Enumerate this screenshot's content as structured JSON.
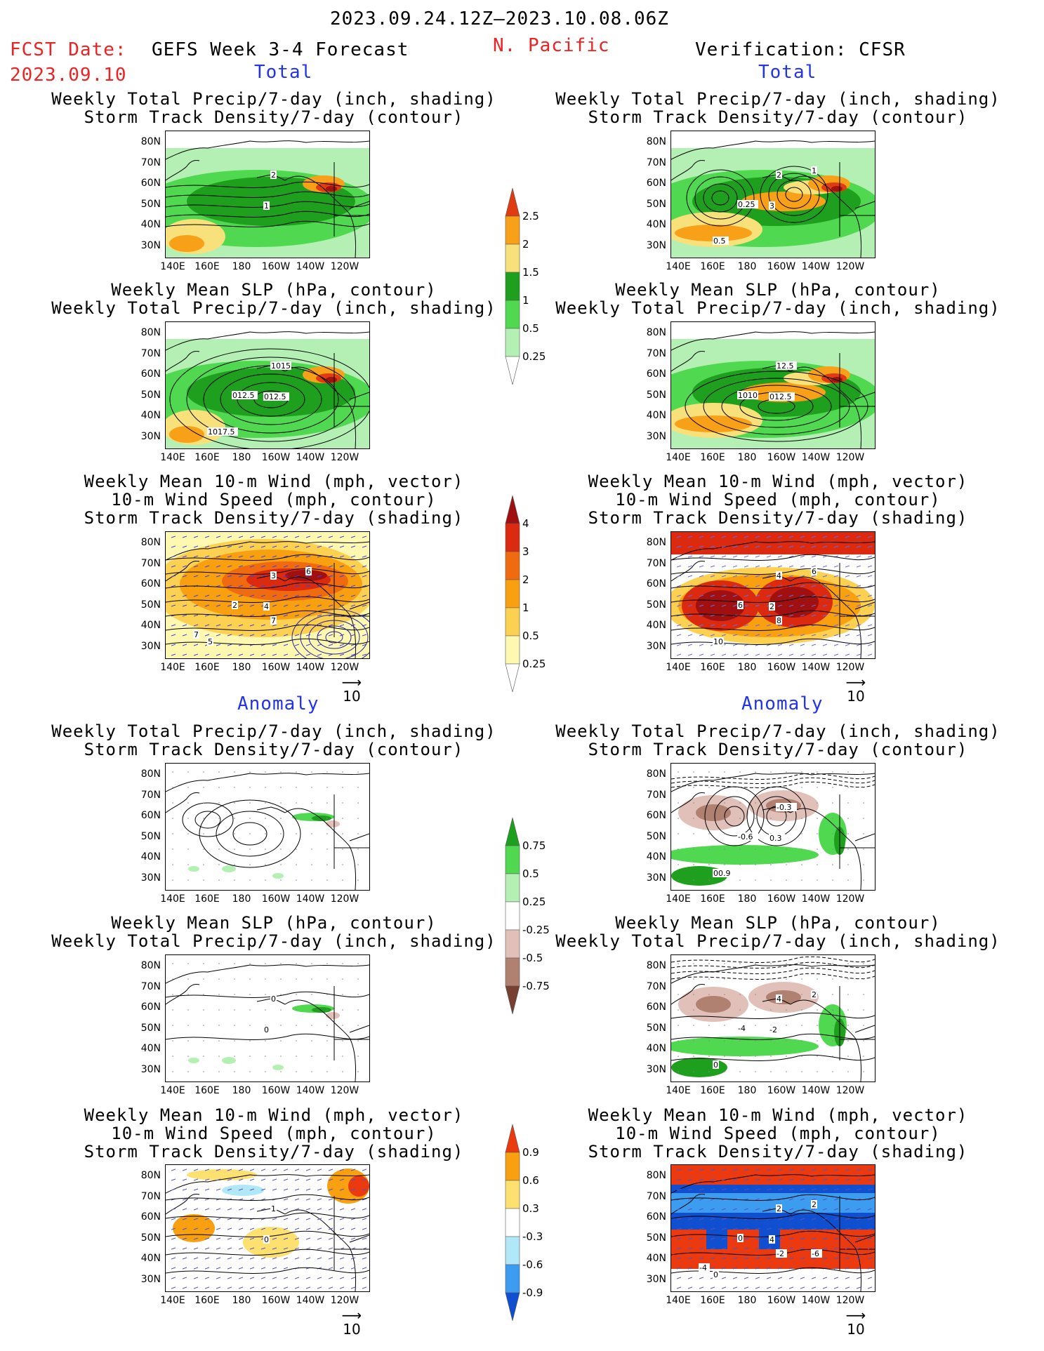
{
  "header": {
    "period": "2023.09.24.12Z—2023.10.08.06Z",
    "fcst_label": "FCST Date:",
    "fcst_date": "2023.09.10",
    "model": "GEFS Week 3-4 Forecast",
    "region": "N. Pacific",
    "verification": "Verification: CFSR"
  },
  "sections": {
    "total": "Total",
    "anomaly": "Anomaly"
  },
  "titles": {
    "precip_track": [
      "Weekly Total Precip/7-day (inch, shading)",
      "Storm Track Density/7-day (contour)"
    ],
    "slp_precip": [
      "Weekly Mean SLP (hPa, contour)",
      "Weekly Total Precip/7-day (inch, shading)"
    ],
    "wind": [
      "Weekly Mean 10-m Wind (mph, vector)",
      "10-m Wind Speed (mph, contour)",
      "Storm Track Density/7-day (shading)"
    ]
  },
  "axes": {
    "lat_labels": [
      "80N",
      "70N",
      "60N",
      "50N",
      "40N",
      "30N"
    ],
    "lon_labels": [
      "140E",
      "160E",
      "180",
      "160W",
      "140W",
      "120W"
    ]
  },
  "vector_ref": "10",
  "colorbars": {
    "precip_total": [
      "2.5",
      "2",
      "1.5",
      "1",
      "0.5",
      "0.25"
    ],
    "track_total": [
      "4",
      "3",
      "2",
      "1",
      "0.5",
      "0.25"
    ],
    "precip_anom": [
      "0.75",
      "0.5",
      "0.25",
      "-0.25",
      "-0.5",
      "-0.75"
    ],
    "track_anom": [
      "0.9",
      "0.6",
      "0.3",
      "-0.3",
      "-0.6",
      "-0.9"
    ]
  },
  "contour_labels": {
    "m1_left": [
      "2",
      "1"
    ],
    "m1_right": [
      "2",
      "3",
      "0.25",
      "0.5",
      "1"
    ],
    "m2_left": [
      "1015",
      "012.5",
      "012.5",
      "1017.5"
    ],
    "m2_right": [
      "12.5",
      "012.5",
      "1010"
    ],
    "m3_left": [
      "3",
      "4",
      "2",
      "5",
      "6",
      "7",
      "7"
    ],
    "m3_right": [
      "4",
      "2",
      "6",
      "10",
      "6",
      "8"
    ],
    "m4_right": [
      "-0.3",
      "0.3",
      "-0.6",
      "00.9"
    ],
    "m5_left": [
      "0",
      "0"
    ],
    "m5_right": [
      "4",
      "-2",
      "-4",
      "0",
      "2"
    ],
    "m6_left": [
      "1",
      "0"
    ],
    "m6_right": [
      "2",
      "4",
      "0",
      "0",
      "2",
      "-2",
      "-4",
      "-6"
    ]
  },
  "colors": {
    "precip": [
      "#b4f0b4",
      "#50d850",
      "#1ea01e",
      "#f8e07a",
      "#f8a018",
      "#e03c14",
      "#a01410"
    ],
    "track": [
      "#fff8b0",
      "#fcd050",
      "#f8a010",
      "#f06a10",
      "#dc2a10",
      "#a01010"
    ],
    "precip_anom_pos": [
      "#b4f0b4",
      "#50d850",
      "#1ea01e"
    ],
    "precip_anom_neg": [
      "#e0c0b8",
      "#b08070",
      "#784030"
    ],
    "track_anom_pos": [
      "#fce070",
      "#f8a010",
      "#ec3a10"
    ],
    "track_anom_neg": [
      "#b0e8f8",
      "#3c9cf0",
      "#1050d0"
    ]
  }
}
